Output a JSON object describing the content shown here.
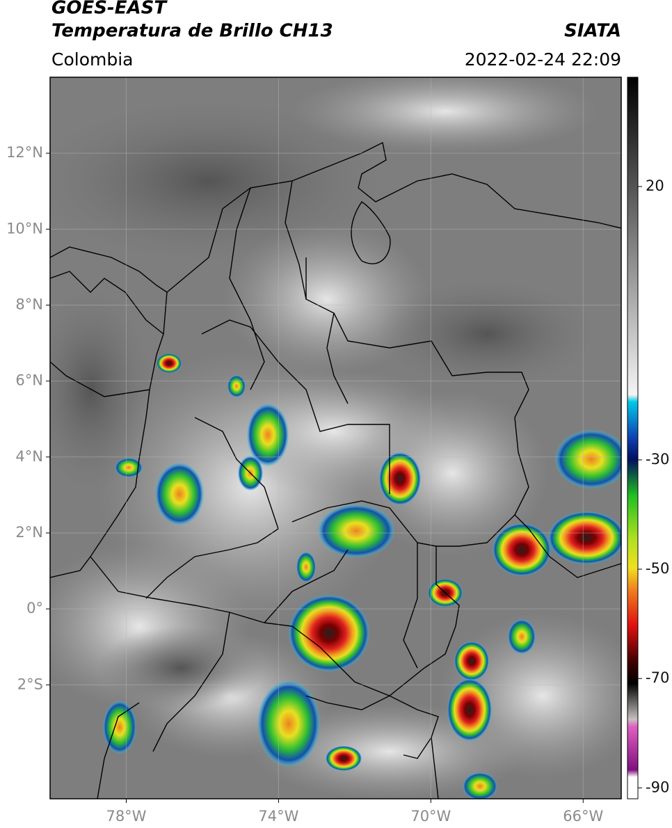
{
  "header": {
    "satellite": "GOES-EAST",
    "product": "Temperatura de Brillo CH13",
    "source": "SIATA",
    "region": "Colombia",
    "datetime": "2022-02-24 22:09"
  },
  "map": {
    "xlim": [
      -80,
      -65
    ],
    "ylim": [
      -5,
      14
    ],
    "xticks": [
      {
        "value": -78,
        "label": "78°W"
      },
      {
        "value": -74,
        "label": "74°W"
      },
      {
        "value": -70,
        "label": "70°W"
      },
      {
        "value": -66,
        "label": "66°W"
      }
    ],
    "yticks": [
      {
        "value": 12,
        "label": "12°N"
      },
      {
        "value": 10,
        "label": "10°N"
      },
      {
        "value": 8,
        "label": "8°N"
      },
      {
        "value": 6,
        "label": "6°N"
      },
      {
        "value": 4,
        "label": "4°N"
      },
      {
        "value": 2,
        "label": "2°N"
      },
      {
        "value": 0,
        "label": "0°"
      },
      {
        "value": -2,
        "label": "2°S"
      }
    ]
  },
  "colorbar": {
    "ylim": [
      -92,
      40
    ],
    "yticks": [
      20,
      -30,
      -50,
      -70,
      -90
    ]
  }
}
